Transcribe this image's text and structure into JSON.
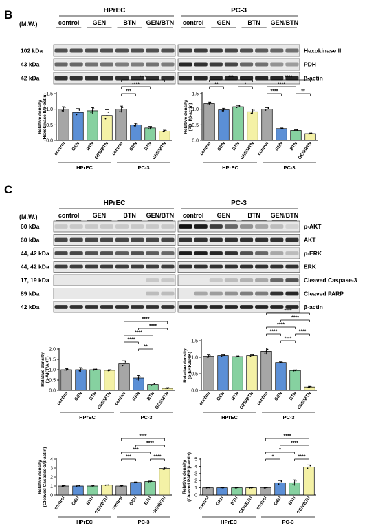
{
  "panels": [
    {
      "letter": "B"
    },
    {
      "letter": "C"
    }
  ],
  "blot_header": {
    "mw": "(M.W.)",
    "groups": [
      "HPrEC",
      "PC-3"
    ],
    "treatments": [
      "control",
      "GEN",
      "BTN",
      "GEN/BTN"
    ]
  },
  "blot_B": {
    "rows": [
      {
        "kda": "102 kDa",
        "label": "Hexokinase II"
      },
      {
        "kda": "43 kDa",
        "label": "PDH"
      },
      {
        "kda": "42 kDa",
        "label": "β-actin"
      }
    ]
  },
  "blot_C": {
    "rows": [
      {
        "kda": "60 kDa",
        "label": "p-AKT"
      },
      {
        "kda": "60 kDa",
        "label": "AKT"
      },
      {
        "kda": "44, 42 kDa",
        "label": "p-ERK"
      },
      {
        "kda": "44, 42 kDa",
        "label": "ERK"
      },
      {
        "kda": "17, 19 kDa",
        "label": "Cleaved Caspase-3"
      },
      {
        "kda": "89 kDa",
        "label": "Cleaved PARP"
      },
      {
        "kda": "42 kDa",
        "label": "β-actin"
      }
    ]
  },
  "chart_data": [
    {
      "type": "bar",
      "name": "hexokinase",
      "categories": [
        "control",
        "GEN",
        "BTN",
        "GEN/BTN",
        "control",
        "GEN",
        "BTN",
        "GEN/BTN"
      ],
      "groups": [
        "HPrEC",
        "PC-3"
      ],
      "values": [
        1.0,
        0.9,
        0.95,
        0.8,
        1.0,
        0.5,
        0.4,
        0.3
      ],
      "errors": [
        0.08,
        0.12,
        0.1,
        0.18,
        0.1,
        0.05,
        0.05,
        0.03
      ],
      "ylabel_line1": "Relative density",
      "ylabel_line2": "(Hexokinase II/β-actin)",
      "ylim": [
        0,
        1.5
      ],
      "yticks": [
        "0.0",
        "0.5",
        "1.0",
        "1.5"
      ],
      "sig": [
        {
          "from": 4,
          "to": 7,
          "text": "****"
        },
        {
          "from": 4,
          "to": 6,
          "text": "****"
        },
        {
          "from": 4,
          "to": 5,
          "text": "***"
        }
      ]
    },
    {
      "type": "bar",
      "name": "pdh",
      "categories": [
        "control",
        "GEN",
        "BTN",
        "GEN/BTN",
        "control",
        "GEN",
        "BTN",
        "GEN/BTN"
      ],
      "groups": [
        "HPrEC",
        "PC-3"
      ],
      "values": [
        1.18,
        0.98,
        1.08,
        0.92,
        1.0,
        0.38,
        0.32,
        0.22
      ],
      "errors": [
        0.05,
        0.05,
        0.04,
        0.08,
        0.05,
        0.02,
        0.02,
        0.02
      ],
      "ylabel_line1": "Relative density",
      "ylabel_line2": "(PDH/β-actin)",
      "ylim": [
        0,
        1.5
      ],
      "yticks": [
        "0.0",
        "0.5",
        "1.0",
        "1.5"
      ],
      "sig": [
        {
          "from": 0,
          "to": 3,
          "text": "***"
        },
        {
          "from": 0,
          "to": 1,
          "text": "**"
        },
        {
          "from": 2,
          "to": 3,
          "text": "*"
        },
        {
          "from": 4,
          "to": 7,
          "text": "****"
        },
        {
          "from": 4,
          "to": 6,
          "text": "****"
        },
        {
          "from": 4,
          "to": 5,
          "text": "****"
        },
        {
          "from": 6,
          "to": 7,
          "text": "**"
        }
      ]
    },
    {
      "type": "bar",
      "name": "pakt",
      "categories": [
        "control",
        "GEN",
        "BTN",
        "GEN/BTN",
        "control",
        "GEN",
        "BTN",
        "GEN/BTN"
      ],
      "groups": [
        "HPrEC",
        "PC-3"
      ],
      "values": [
        1.0,
        1.0,
        1.0,
        0.97,
        1.28,
        0.6,
        0.28,
        0.1
      ],
      "errors": [
        0.05,
        0.1,
        0.03,
        0.03,
        0.15,
        0.12,
        0.07,
        0.03
      ],
      "ylabel_line1": "Relative density",
      "ylabel_line2": "(p-AKT/AKT)",
      "ylim": [
        0,
        2.0
      ],
      "yticks": [
        "0.0",
        "0.5",
        "1.0",
        "1.5",
        "2.0"
      ],
      "sig": [
        {
          "from": 4,
          "to": 7,
          "text": "****"
        },
        {
          "from": 5,
          "to": 7,
          "text": "****"
        },
        {
          "from": 4,
          "to": 6,
          "text": "****"
        },
        {
          "from": 4,
          "to": 5,
          "text": "****"
        },
        {
          "from": 5,
          "to": 6,
          "text": "**"
        }
      ]
    },
    {
      "type": "bar",
      "name": "perk",
      "categories": [
        "control",
        "GEN",
        "BTN",
        "GEN/BTN",
        "control",
        "GEN",
        "BTN",
        "GEN/BTN"
      ],
      "groups": [
        "HPrEC",
        "PC-3"
      ],
      "values": [
        1.03,
        1.05,
        1.02,
        1.05,
        1.18,
        0.84,
        0.6,
        0.1
      ],
      "errors": [
        0.04,
        0.02,
        0.02,
        0.02,
        0.1,
        0.02,
        0.02,
        0.02
      ],
      "ylabel_line1": "Relative density",
      "ylabel_line2": "(p-ERK/ERK)",
      "ylim": [
        0,
        1.5
      ],
      "yticks": [
        "0.0",
        "0.5",
        "1.0",
        "1.5"
      ],
      "sig": [
        {
          "from": 4,
          "to": 7,
          "text": "****"
        },
        {
          "from": 5,
          "to": 7,
          "text": "****"
        },
        {
          "from": 4,
          "to": 6,
          "text": "****"
        },
        {
          "from": 4,
          "to": 5,
          "text": "****"
        },
        {
          "from": 5,
          "to": 6,
          "text": "****"
        },
        {
          "from": 6,
          "to": 7,
          "text": "****"
        }
      ]
    },
    {
      "type": "bar",
      "name": "caspase",
      "categories": [
        "control",
        "GEN",
        "BTN",
        "GEN/BTN",
        "control",
        "GEN",
        "BTN",
        "GEN/BTN"
      ],
      "groups": [
        "HPrEC",
        "PC-3"
      ],
      "values": [
        1.0,
        1.0,
        1.0,
        1.1,
        1.0,
        1.4,
        1.5,
        2.95
      ],
      "errors": [
        0.05,
        0.03,
        0.03,
        0.03,
        0.05,
        0.05,
        0.05,
        0.15
      ],
      "ylabel_line1": "Relative density",
      "ylabel_line2": "(Cleaved Caspase-3/β-actin)",
      "ylim": [
        0,
        4
      ],
      "yticks": [
        "0",
        "1",
        "2",
        "3",
        "4"
      ],
      "sig": [
        {
          "from": 4,
          "to": 7,
          "text": "****"
        },
        {
          "from": 5,
          "to": 7,
          "text": "****"
        },
        {
          "from": 4,
          "to": 6,
          "text": "***"
        },
        {
          "from": 4,
          "to": 5,
          "text": "***"
        },
        {
          "from": 6,
          "to": 7,
          "text": "****"
        }
      ]
    },
    {
      "type": "bar",
      "name": "parp",
      "categories": [
        "control",
        "GEN",
        "BTN",
        "GEN/BTN",
        "control",
        "GEN",
        "BTN",
        "GEN/BTN"
      ],
      "groups": [
        "HPrEC",
        "PC-3"
      ],
      "values": [
        1.0,
        1.0,
        1.0,
        1.0,
        1.0,
        1.7,
        1.7,
        3.9
      ],
      "errors": [
        0.03,
        0.03,
        0.03,
        0.05,
        0.05,
        0.3,
        0.4,
        0.3
      ],
      "ylabel_line1": "Relative density",
      "ylabel_line2": "(Cleaved PARP/β-actin)",
      "ylim": [
        0,
        5
      ],
      "yticks": [
        "0",
        "1",
        "2",
        "3",
        "4",
        "5"
      ],
      "sig": [
        {
          "from": 4,
          "to": 7,
          "text": "****"
        },
        {
          "from": 5,
          "to": 7,
          "text": "****"
        },
        {
          "from": 4,
          "to": 6,
          "text": "*"
        },
        {
          "from": 4,
          "to": 5,
          "text": "*"
        },
        {
          "from": 6,
          "to": 7,
          "text": "****"
        }
      ]
    }
  ],
  "colors": {
    "bars": [
      "#a6a6a6",
      "#5b8fd6",
      "#86d1a0",
      "#f4f1a6",
      "#a6a6a6",
      "#5b8fd6",
      "#86d1a0",
      "#f4f1a6"
    ],
    "blot_bg": "#e8e8e8",
    "band": "#111111"
  }
}
